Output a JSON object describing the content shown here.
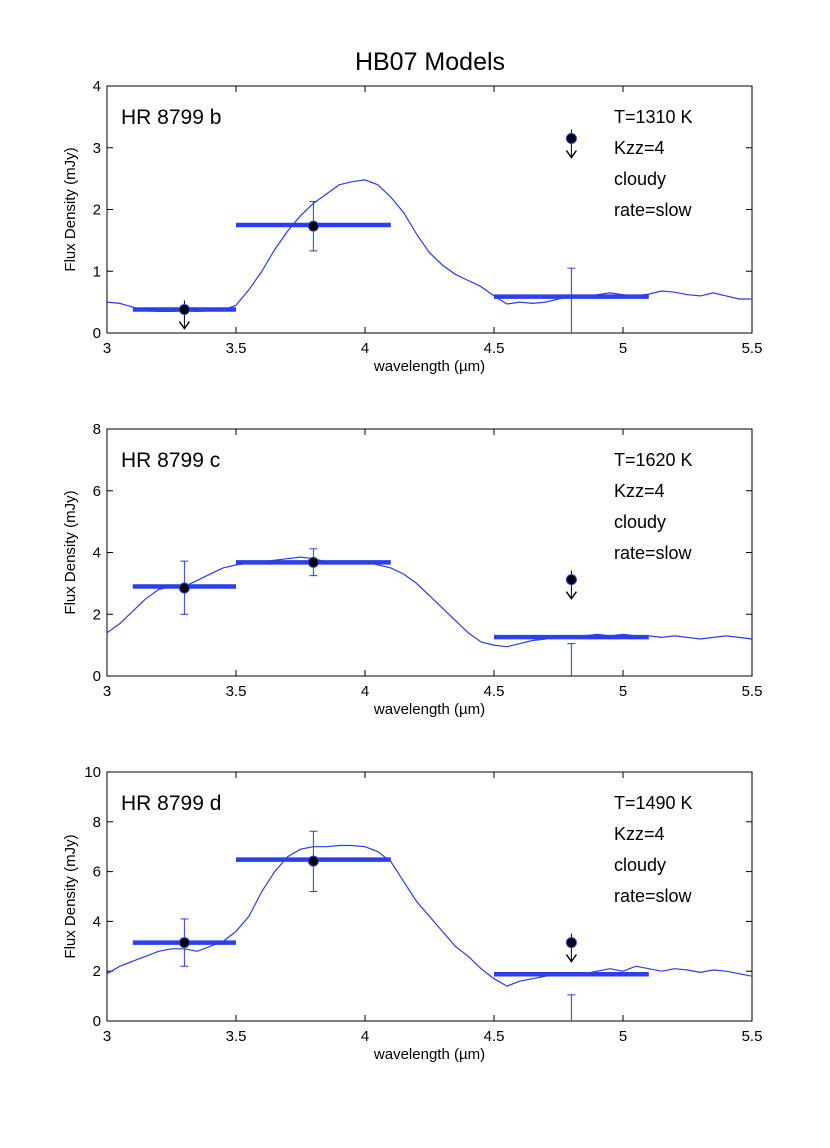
{
  "figure_title": "HB07 Models",
  "colors": {
    "model": "#2a3ee8",
    "bar": "#2b3ff0",
    "marker": "#000000",
    "errorbar": "#2a3ee8"
  },
  "chart_data": [
    {
      "type": "line",
      "panel_label": "HR 8799 b",
      "params": [
        "T=1310 K",
        "Kzz=4",
        "cloudy",
        "rate=slow"
      ],
      "xlabel": "wavelength (µm)",
      "ylabel": "Flux Density (mJy)",
      "xlim": [
        3,
        5.5
      ],
      "ylim": [
        0,
        4
      ],
      "xticks": [
        3,
        3.5,
        4,
        4.5,
        5,
        5.5
      ],
      "xtick_labels": [
        "3",
        "3.5",
        "4",
        "4.5",
        "5",
        "5.5"
      ],
      "yticks": [
        0,
        1,
        2,
        3,
        4
      ],
      "ytick_labels": [
        "0",
        "1",
        "2",
        "3",
        "4"
      ],
      "grid": false,
      "model_spectrum": {
        "x": [
          3.0,
          3.05,
          3.1,
          3.15,
          3.2,
          3.25,
          3.3,
          3.35,
          3.4,
          3.45,
          3.5,
          3.55,
          3.6,
          3.65,
          3.7,
          3.75,
          3.8,
          3.85,
          3.9,
          3.95,
          4.0,
          4.05,
          4.1,
          4.15,
          4.2,
          4.25,
          4.3,
          4.35,
          4.4,
          4.45,
          4.5,
          4.55,
          4.6,
          4.65,
          4.7,
          4.75,
          4.8,
          4.85,
          4.9,
          4.95,
          5.0,
          5.05,
          5.1,
          5.15,
          5.2,
          5.25,
          5.3,
          5.35,
          5.4,
          5.45,
          5.5
        ],
        "y": [
          0.5,
          0.48,
          0.42,
          0.36,
          0.35,
          0.35,
          0.36,
          0.35,
          0.36,
          0.37,
          0.45,
          0.7,
          1.0,
          1.35,
          1.65,
          1.9,
          2.1,
          2.25,
          2.4,
          2.45,
          2.48,
          2.4,
          2.2,
          1.95,
          1.6,
          1.3,
          1.1,
          0.95,
          0.85,
          0.75,
          0.6,
          0.47,
          0.5,
          0.48,
          0.5,
          0.55,
          0.6,
          0.58,
          0.62,
          0.65,
          0.62,
          0.6,
          0.63,
          0.68,
          0.66,
          0.62,
          0.6,
          0.65,
          0.6,
          0.55,
          0.55
        ]
      },
      "band_bars": [
        {
          "x0": 3.1,
          "x1": 3.5,
          "y": 0.38
        },
        {
          "x0": 3.5,
          "x1": 4.1,
          "y": 1.75
        },
        {
          "x0": 4.5,
          "x1": 5.1,
          "y": 0.59
        }
      ],
      "measurements": [
        {
          "x": 3.3,
          "y": 0.38,
          "upper_limit": true
        },
        {
          "x": 3.8,
          "y": 1.73,
          "err_low": 1.33,
          "err_high": 2.13,
          "upper_limit": false
        },
        {
          "x": 4.8,
          "y": 3.15,
          "upper_limit": true
        }
      ],
      "errorbars_only": [
        {
          "x": 4.8,
          "y_low": 0.0,
          "y_high": 1.05
        }
      ]
    },
    {
      "type": "line",
      "panel_label": "HR 8799 c",
      "params": [
        "T=1620 K",
        "Kzz=4",
        "cloudy",
        "rate=slow"
      ],
      "xlabel": "wavelength (µm)",
      "ylabel": "Flux Density (mJy)",
      "xlim": [
        3,
        5.5
      ],
      "ylim": [
        0,
        8
      ],
      "xticks": [
        3,
        3.5,
        4,
        4.5,
        5,
        5.5
      ],
      "xtick_labels": [
        "3",
        "3.5",
        "4",
        "4.5",
        "5",
        "5.5"
      ],
      "yticks": [
        0,
        2,
        4,
        6,
        8
      ],
      "ytick_labels": [
        "0",
        "2",
        "4",
        "6",
        "8"
      ],
      "grid": false,
      "model_spectrum": {
        "x": [
          3.0,
          3.05,
          3.1,
          3.15,
          3.2,
          3.25,
          3.3,
          3.35,
          3.4,
          3.45,
          3.5,
          3.55,
          3.6,
          3.65,
          3.7,
          3.75,
          3.8,
          3.85,
          3.9,
          3.95,
          4.0,
          4.05,
          4.1,
          4.15,
          4.2,
          4.25,
          4.3,
          4.35,
          4.4,
          4.45,
          4.5,
          4.55,
          4.6,
          4.65,
          4.7,
          4.75,
          4.8,
          4.85,
          4.9,
          4.95,
          5.0,
          5.05,
          5.1,
          5.15,
          5.2,
          5.25,
          5.3,
          5.35,
          5.4,
          5.45,
          5.5
        ],
        "y": [
          1.4,
          1.7,
          2.1,
          2.5,
          2.8,
          2.9,
          2.9,
          3.1,
          3.3,
          3.5,
          3.6,
          3.65,
          3.7,
          3.75,
          3.8,
          3.85,
          3.8,
          3.7,
          3.65,
          3.7,
          3.7,
          3.6,
          3.5,
          3.3,
          3.0,
          2.6,
          2.2,
          1.8,
          1.4,
          1.1,
          1.0,
          0.95,
          1.05,
          1.15,
          1.2,
          1.3,
          1.25,
          1.3,
          1.35,
          1.3,
          1.35,
          1.3,
          1.3,
          1.25,
          1.3,
          1.25,
          1.2,
          1.25,
          1.3,
          1.25,
          1.2
        ]
      },
      "band_bars": [
        {
          "x0": 3.1,
          "x1": 3.5,
          "y": 2.9
        },
        {
          "x0": 3.5,
          "x1": 4.1,
          "y": 3.68
        },
        {
          "x0": 4.5,
          "x1": 5.1,
          "y": 1.26
        }
      ],
      "measurements": [
        {
          "x": 3.3,
          "y": 2.85,
          "err_low": 2.0,
          "err_high": 3.72,
          "upper_limit": false
        },
        {
          "x": 3.8,
          "y": 3.68,
          "err_low": 3.25,
          "err_high": 4.12,
          "upper_limit": false
        },
        {
          "x": 4.8,
          "y": 3.12,
          "upper_limit": true
        }
      ],
      "errorbars_only": [
        {
          "x": 4.8,
          "y_low": 0.0,
          "y_high": 1.05
        }
      ]
    },
    {
      "type": "line",
      "panel_label": "HR 8799 d",
      "params": [
        "T=1490 K",
        "Kzz=4",
        "cloudy",
        "rate=slow"
      ],
      "xlabel": "wavelength (µm)",
      "ylabel": "Flux Density (mJy)",
      "xlim": [
        3,
        5.5
      ],
      "ylim": [
        0,
        10
      ],
      "xticks": [
        3,
        3.5,
        4,
        4.5,
        5,
        5.5
      ],
      "xtick_labels": [
        "3",
        "3.5",
        "4",
        "4.5",
        "5",
        "5.5"
      ],
      "yticks": [
        0,
        2,
        4,
        6,
        8,
        10
      ],
      "ytick_labels": [
        "0",
        "2",
        "4",
        "6",
        "8",
        "10"
      ],
      "grid": false,
      "model_spectrum": {
        "x": [
          3.0,
          3.05,
          3.1,
          3.15,
          3.2,
          3.25,
          3.3,
          3.35,
          3.4,
          3.45,
          3.5,
          3.55,
          3.6,
          3.65,
          3.7,
          3.75,
          3.8,
          3.85,
          3.9,
          3.95,
          4.0,
          4.05,
          4.1,
          4.15,
          4.2,
          4.25,
          4.3,
          4.35,
          4.4,
          4.45,
          4.5,
          4.55,
          4.6,
          4.65,
          4.7,
          4.75,
          4.8,
          4.85,
          4.9,
          4.95,
          5.0,
          5.05,
          5.1,
          5.15,
          5.2,
          5.25,
          5.3,
          5.35,
          5.4,
          5.45,
          5.5
        ],
        "y": [
          1.9,
          2.2,
          2.4,
          2.6,
          2.8,
          2.9,
          2.9,
          2.8,
          3.0,
          3.2,
          3.6,
          4.2,
          5.2,
          6.0,
          6.6,
          6.9,
          7.0,
          7.0,
          7.05,
          7.05,
          7.0,
          6.8,
          6.4,
          5.6,
          4.8,
          4.2,
          3.6,
          3.0,
          2.6,
          2.1,
          1.7,
          1.4,
          1.6,
          1.7,
          1.8,
          1.9,
          1.85,
          1.9,
          2.0,
          2.1,
          2.0,
          2.2,
          2.1,
          2.0,
          2.1,
          2.05,
          1.95,
          2.05,
          2.0,
          1.9,
          1.8
        ]
      },
      "band_bars": [
        {
          "x0": 3.1,
          "x1": 3.5,
          "y": 3.15
        },
        {
          "x0": 3.5,
          "x1": 4.1,
          "y": 6.48
        },
        {
          "x0": 4.5,
          "x1": 5.1,
          "y": 1.88
        }
      ],
      "measurements": [
        {
          "x": 3.3,
          "y": 3.15,
          "err_low": 2.2,
          "err_high": 4.1,
          "upper_limit": false
        },
        {
          "x": 3.8,
          "y": 6.42,
          "err_low": 5.2,
          "err_high": 7.62,
          "upper_limit": false
        },
        {
          "x": 4.8,
          "y": 3.15,
          "upper_limit": true
        }
      ],
      "errorbars_only": [
        {
          "x": 4.8,
          "y_low": 0.0,
          "y_high": 1.05
        }
      ]
    }
  ]
}
